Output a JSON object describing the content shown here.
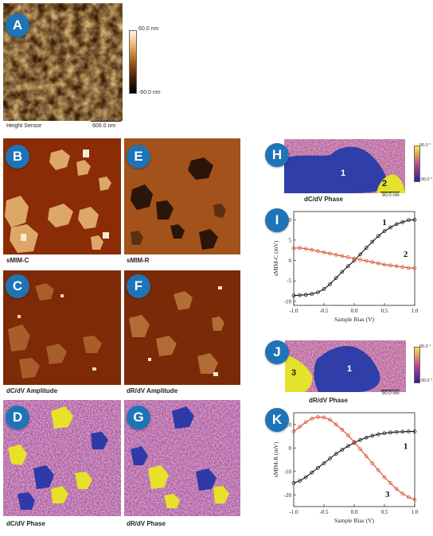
{
  "panels": {
    "A": {
      "label": "A",
      "caption": "Height Sensor",
      "scale": "600.0 nm",
      "cbar_max": "60.0 nm",
      "cbar_min": "-60.0 nm"
    },
    "B": {
      "label": "B",
      "caption": "sMIM-C"
    },
    "E": {
      "label": "E",
      "caption": "sMIM-R"
    },
    "C": {
      "label": "C",
      "caption": "dC/dV Amplitude"
    },
    "F": {
      "label": "F",
      "caption": "dR/dV Amplitude"
    },
    "D": {
      "label": "D",
      "caption": "dC/dV Phase"
    },
    "G": {
      "label": "G",
      "caption": "dR/dV Phase"
    },
    "H": {
      "label": "H",
      "caption": "dC/dV Phase",
      "scale": "90.0 nm",
      "cbar_max": "90.0 °",
      "cbar_min": "-90.0 °",
      "region1": "1",
      "region2": "2"
    },
    "I": {
      "label": "I"
    },
    "J": {
      "label": "J",
      "caption": "dR/dV Phase",
      "scale": "90.0 nm",
      "cbar_max": "90.0 °",
      "cbar_min": "-90.0 °",
      "region1": "1",
      "region3": "3"
    },
    "K": {
      "label": "K"
    }
  },
  "colors": {
    "badge": "#1f73b7",
    "series_black": "#111111",
    "series_red": "#d9482b"
  },
  "chart_data": [
    {
      "panel": "I",
      "type": "scatter",
      "xlabel": "Sample Bias (V)",
      "ylabel": "sMIM-C (mV)",
      "xlim": [
        -1.0,
        1.0
      ],
      "ylim": [
        -11,
        12
      ],
      "xticks": [
        "-1.0",
        "-0.5",
        "0.0",
        "0.5",
        "1.0"
      ],
      "xtick_values": [
        -1.0,
        -0.5,
        0.0,
        0.5,
        1.0
      ],
      "yticks": [
        "-10",
        "-5",
        "0",
        "5",
        "10"
      ],
      "ytick_values": [
        -10,
        -5,
        0,
        5,
        10
      ],
      "series": [
        {
          "name": "1",
          "color": "#111111",
          "x": [
            -1.0,
            -0.9,
            -0.8,
            -0.7,
            -0.6,
            -0.5,
            -0.4,
            -0.3,
            -0.2,
            -0.1,
            0.0,
            0.1,
            0.2,
            0.3,
            0.4,
            0.5,
            0.6,
            0.7,
            0.8,
            0.9,
            1.0
          ],
          "y": [
            -8.6,
            -8.5,
            -8.4,
            -8.2,
            -7.8,
            -7.0,
            -5.8,
            -4.3,
            -2.8,
            -1.4,
            0.0,
            1.5,
            3.1,
            4.6,
            6.0,
            7.2,
            8.1,
            8.9,
            9.4,
            9.9,
            10.0
          ]
        },
        {
          "name": "2",
          "color": "#d9482b",
          "x": [
            -1.0,
            -0.9,
            -0.8,
            -0.7,
            -0.6,
            -0.5,
            -0.4,
            -0.3,
            -0.2,
            -0.1,
            0.0,
            0.1,
            0.2,
            0.3,
            0.4,
            0.5,
            0.6,
            0.7,
            0.8,
            0.9,
            1.0
          ],
          "y": [
            3.0,
            3.1,
            2.9,
            2.6,
            2.3,
            2.0,
            1.7,
            1.4,
            1.1,
            0.8,
            0.5,
            0.2,
            -0.1,
            -0.4,
            -0.7,
            -1.0,
            -1.2,
            -1.4,
            -1.6,
            -1.8,
            -1.9
          ]
        }
      ],
      "annotations": [
        "1",
        "2"
      ]
    },
    {
      "panel": "K",
      "type": "scatter",
      "xlabel": "Sample Bias (V)",
      "ylabel": "sMIM-R (mV)",
      "xlim": [
        -1.0,
        1.0
      ],
      "ylim": [
        -25,
        15
      ],
      "xticks": [
        "-1.0",
        "-0.5",
        "0.0",
        "0.5",
        "1.0"
      ],
      "xtick_values": [
        -1.0,
        -0.5,
        0.0,
        0.5,
        1.0
      ],
      "yticks": [
        "-20",
        "-10",
        "0",
        "10"
      ],
      "ytick_values": [
        -20,
        -10,
        0,
        10
      ],
      "series": [
        {
          "name": "1",
          "color": "#111111",
          "x": [
            -1.0,
            -0.9,
            -0.8,
            -0.7,
            -0.6,
            -0.5,
            -0.4,
            -0.3,
            -0.2,
            -0.1,
            0.0,
            0.1,
            0.2,
            0.3,
            0.4,
            0.5,
            0.6,
            0.7,
            0.8,
            0.9,
            1.0
          ],
          "y": [
            -15.0,
            -14.0,
            -12.5,
            -10.5,
            -8.5,
            -6.5,
            -4.5,
            -2.5,
            -0.8,
            0.8,
            2.2,
            3.4,
            4.4,
            5.2,
            5.8,
            6.3,
            6.6,
            6.8,
            6.9,
            7.0,
            7.0
          ]
        },
        {
          "name": "3",
          "color": "#d9482b",
          "x": [
            -1.0,
            -0.9,
            -0.8,
            -0.7,
            -0.6,
            -0.5,
            -0.4,
            -0.3,
            -0.2,
            -0.1,
            0.0,
            0.1,
            0.2,
            0.3,
            0.4,
            0.5,
            0.6,
            0.7,
            0.8,
            0.9,
            1.0
          ],
          "y": [
            7.0,
            9.0,
            11.0,
            12.5,
            13.2,
            13.0,
            12.0,
            10.0,
            7.8,
            5.3,
            2.5,
            -0.5,
            -3.5,
            -6.5,
            -9.5,
            -12.5,
            -15.0,
            -17.5,
            -19.5,
            -21.0,
            -22.0
          ]
        }
      ],
      "annotations": [
        "1",
        "3"
      ]
    }
  ]
}
